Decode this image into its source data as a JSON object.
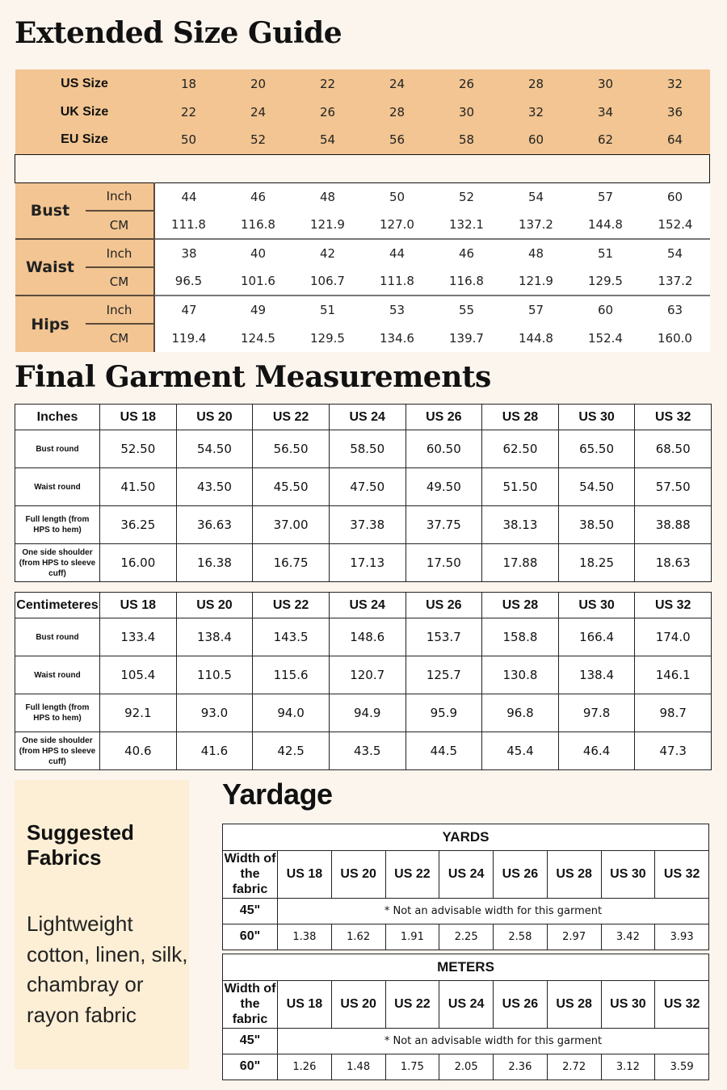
{
  "title": "Extended Size Guide",
  "size_chart": {
    "header_rows": [
      {
        "label": "US Size",
        "values": [
          "18",
          "20",
          "22",
          "24",
          "26",
          "28",
          "30",
          "32"
        ]
      },
      {
        "label": "UK Size",
        "values": [
          "22",
          "24",
          "26",
          "28",
          "30",
          "32",
          "34",
          "36"
        ]
      },
      {
        "label": "EU Size",
        "values": [
          "50",
          "52",
          "54",
          "56",
          "58",
          "60",
          "62",
          "64"
        ]
      }
    ],
    "groups": [
      {
        "label": "Bust",
        "inch_label": "Inch",
        "cm_label": "CM",
        "inch": [
          "44",
          "46",
          "48",
          "50",
          "52",
          "54",
          "57",
          "60"
        ],
        "cm": [
          "111.8",
          "116.8",
          "121.9",
          "127.0",
          "132.1",
          "137.2",
          "144.8",
          "152.4"
        ]
      },
      {
        "label": "Waist",
        "inch_label": "Inch",
        "cm_label": "CM",
        "inch": [
          "38",
          "40",
          "42",
          "44",
          "46",
          "48",
          "51",
          "54"
        ],
        "cm": [
          "96.5",
          "101.6",
          "106.7",
          "111.8",
          "116.8",
          "121.9",
          "129.5",
          "137.2"
        ]
      },
      {
        "label": "Hips",
        "inch_label": "Inch",
        "cm_label": "CM",
        "inch": [
          "47",
          "49",
          "51",
          "53",
          "55",
          "57",
          "60",
          "63"
        ],
        "cm": [
          "119.4",
          "124.5",
          "129.5",
          "134.6",
          "139.7",
          "144.8",
          "152.4",
          "160.0"
        ]
      }
    ]
  },
  "garment_title": "Final Garment Measurements",
  "garment_inches": {
    "header": [
      "Inches",
      "US 18",
      "US 20",
      "US 22",
      "US 24",
      "US 26",
      "US 28",
      "US 30",
      "US 32"
    ],
    "rows": [
      {
        "label": "Bust round",
        "values": [
          "52.50",
          "54.50",
          "56.50",
          "58.50",
          "60.50",
          "62.50",
          "65.50",
          "68.50"
        ]
      },
      {
        "label": "Waist round",
        "values": [
          "41.50",
          "43.50",
          "45.50",
          "47.50",
          "49.50",
          "51.50",
          "54.50",
          "57.50"
        ]
      },
      {
        "label": "Full length (from HPS to hem)",
        "values": [
          "36.25",
          "36.63",
          "37.00",
          "37.38",
          "37.75",
          "38.13",
          "38.50",
          "38.88"
        ]
      },
      {
        "label": "One side shoulder (from HPS to sleeve cuff)",
        "values": [
          "16.00",
          "16.38",
          "16.75",
          "17.13",
          "17.50",
          "17.88",
          "18.25",
          "18.63"
        ]
      }
    ]
  },
  "garment_cm": {
    "header": [
      "Centimeteres",
      "US 18",
      "US 20",
      "US 22",
      "US 24",
      "US 26",
      "US 28",
      "US 30",
      "US 32"
    ],
    "rows": [
      {
        "label": "Bust round",
        "values": [
          "133.4",
          "138.4",
          "143.5",
          "148.6",
          "153.7",
          "158.8",
          "166.4",
          "174.0"
        ]
      },
      {
        "label": "Waist round",
        "values": [
          "105.4",
          "110.5",
          "115.6",
          "120.7",
          "125.7",
          "130.8",
          "138.4",
          "146.1"
        ]
      },
      {
        "label": "Full length (from HPS to hem)",
        "values": [
          "92.1",
          "93.0",
          "94.0",
          "94.9",
          "95.9",
          "96.8",
          "97.8",
          "98.7"
        ]
      },
      {
        "label": "One side shoulder (from HPS to sleeve cuff)",
        "values": [
          "40.6",
          "41.6",
          "42.5",
          "43.5",
          "44.5",
          "45.4",
          "46.4",
          "47.3"
        ]
      }
    ]
  },
  "fabrics": {
    "title": "Suggested Fabrics",
    "text": "Lightweight cotton, linen, silk, chambray or rayon fabric"
  },
  "yardage_title": "Yardage",
  "yardage": [
    {
      "unit": "YARDS",
      "header": [
        "Width of the fabric",
        "US 18",
        "US 20",
        "US 22",
        "US 24",
        "US 26",
        "US 28",
        "US 30",
        "US 32"
      ],
      "w45": "45\"",
      "note": "* Not an advisable width for this garment",
      "w60": "60\"",
      "values": [
        "1.38",
        "1.62",
        "1.91",
        "2.25",
        "2.58",
        "2.97",
        "3.42",
        "3.93"
      ]
    },
    {
      "unit": "METERS",
      "header": [
        "Width of the fabric",
        "US 18",
        "US 20",
        "US 22",
        "US 24",
        "US 26",
        "US 28",
        "US 30",
        "US 32"
      ],
      "w45": "45\"",
      "note": "* Not an advisable width for this garment",
      "w60": "60\"",
      "values": [
        "1.26",
        "1.48",
        "1.75",
        "2.05",
        "2.36",
        "2.72",
        "3.12",
        "3.59"
      ]
    }
  ],
  "colors": {
    "background": "#fcf5ee",
    "accent": "#f2c592",
    "fabric_box": "#fdefd6"
  }
}
